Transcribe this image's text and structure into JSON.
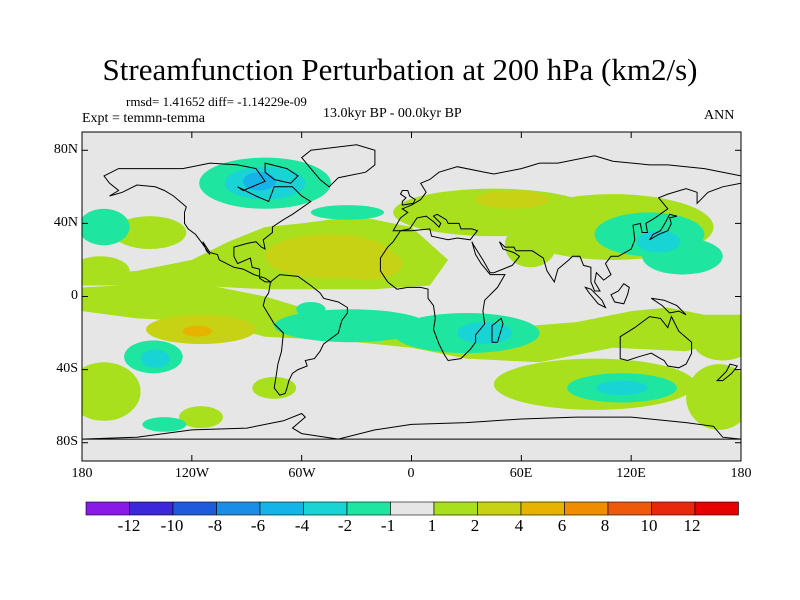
{
  "title": "Streamfunction Perturbation at 200 hPa (km2/s)",
  "stats": "rmsd= 1.41652 diff= -1.14229e-09",
  "experiment": "Expt = temmn-temma",
  "period": "13.0kyr BP - 00.0kyr BP",
  "season": "ANN",
  "axes": {
    "x_ticks": [
      "180",
      "120W",
      "60W",
      "0",
      "60E",
      "120E",
      "180"
    ],
    "y_ticks": [
      "80N",
      "40N",
      "0",
      "40S",
      "80S"
    ]
  },
  "colorbar": {
    "labels": [
      "-12",
      "-10",
      "-8",
      "-6",
      "-4",
      "-2",
      "-1",
      "1",
      "2",
      "4",
      "6",
      "8",
      "10",
      "12"
    ],
    "colors": [
      "#8a1ae6",
      "#3c28d8",
      "#1e5adc",
      "#1a8ee6",
      "#14b4e8",
      "#18d4d4",
      "#1ee6a0",
      "#e6e6e6",
      "#a8e01e",
      "#c8d214",
      "#e6b400",
      "#f08c00",
      "#ee5a0a",
      "#e8280a",
      "#e60000"
    ]
  },
  "palette": {
    "neutral": "#e6e6e6",
    "neg1": "#1ee6a0",
    "neg2": "#18d4d4",
    "neg4": "#14b4e8",
    "pos1": "#a8e01e",
    "pos2": "#c8d214",
    "pos4": "#e6b400"
  }
}
